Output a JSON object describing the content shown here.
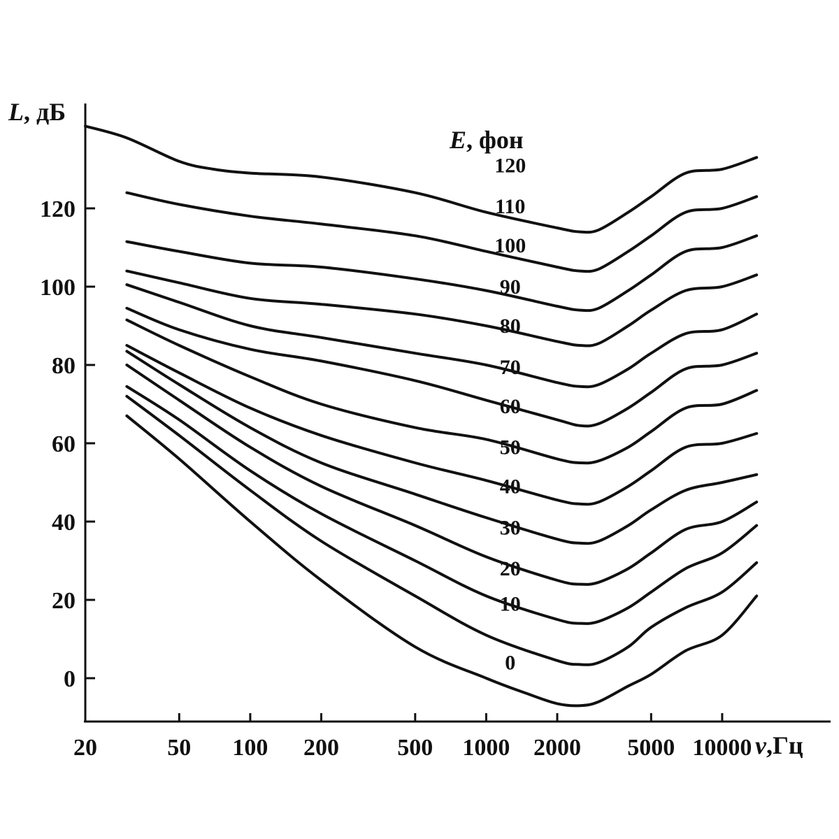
{
  "chart_data": {
    "type": "line",
    "title": "",
    "ylabel": {
      "symbol": "L",
      "unit": ", дБ"
    },
    "xlabel": {
      "symbol": "ν",
      "unit": ",Гц"
    },
    "legend_title": {
      "symbol": "E",
      "unit": ", фон"
    },
    "x_scale": "log",
    "xlim": [
      20,
      20000
    ],
    "ylim": [
      -12,
      146
    ],
    "grid": false,
    "x_ticks": [
      {
        "value": 20,
        "label": "20"
      },
      {
        "value": 50,
        "label": "50"
      },
      {
        "value": 100,
        "label": "100"
      },
      {
        "value": 200,
        "label": "200"
      },
      {
        "value": 500,
        "label": "500"
      },
      {
        "value": 1000,
        "label": "1000"
      },
      {
        "value": 2000,
        "label": "2000"
      },
      {
        "value": 5000,
        "label": "5000"
      },
      {
        "value": 10000,
        "label": "10000"
      }
    ],
    "y_ticks": [
      {
        "value": 0,
        "label": "0"
      },
      {
        "value": 20,
        "label": "20"
      },
      {
        "value": 40,
        "label": "40"
      },
      {
        "value": 60,
        "label": "60"
      },
      {
        "value": 80,
        "label": "80"
      },
      {
        "value": 100,
        "label": "100"
      },
      {
        "value": 120,
        "label": "120"
      }
    ],
    "series": [
      {
        "label": "120",
        "label_at": [
          1030,
          131
        ],
        "points": [
          [
            20,
            141
          ],
          [
            30,
            138
          ],
          [
            50,
            132
          ],
          [
            70,
            130
          ],
          [
            100,
            129
          ],
          [
            200,
            128
          ],
          [
            500,
            124
          ],
          [
            1000,
            119
          ],
          [
            2000,
            115
          ],
          [
            2500,
            114
          ],
          [
            3000,
            114.5
          ],
          [
            4000,
            119
          ],
          [
            5000,
            123
          ],
          [
            7000,
            129
          ],
          [
            10000,
            130
          ],
          [
            14000,
            133
          ]
        ]
      },
      {
        "label": "110",
        "label_at": [
          1030,
          120.5
        ],
        "points": [
          [
            30,
            124
          ],
          [
            50,
            121
          ],
          [
            100,
            118
          ],
          [
            200,
            116
          ],
          [
            500,
            113
          ],
          [
            1000,
            109
          ],
          [
            2000,
            105
          ],
          [
            2500,
            104
          ],
          [
            3000,
            104.5
          ],
          [
            4000,
            109
          ],
          [
            5000,
            113
          ],
          [
            7000,
            119
          ],
          [
            10000,
            120
          ],
          [
            14000,
            123
          ]
        ]
      },
      {
        "label": "100",
        "label_at": [
          1030,
          110.5
        ],
        "points": [
          [
            30,
            111.5
          ],
          [
            50,
            109
          ],
          [
            100,
            106
          ],
          [
            200,
            105
          ],
          [
            500,
            102
          ],
          [
            1000,
            99
          ],
          [
            2000,
            95
          ],
          [
            2500,
            94
          ],
          [
            3000,
            94.5
          ],
          [
            4000,
            99
          ],
          [
            5000,
            103
          ],
          [
            7000,
            109
          ],
          [
            10000,
            110
          ],
          [
            14000,
            113
          ]
        ]
      },
      {
        "label": "90",
        "label_at": [
          1030,
          100
        ],
        "points": [
          [
            30,
            104
          ],
          [
            50,
            101
          ],
          [
            100,
            97
          ],
          [
            200,
            95.5
          ],
          [
            500,
            93
          ],
          [
            1000,
            90
          ],
          [
            2000,
            86
          ],
          [
            2500,
            85
          ],
          [
            3000,
            85.5
          ],
          [
            4000,
            90
          ],
          [
            5000,
            94
          ],
          [
            7000,
            99
          ],
          [
            10000,
            100
          ],
          [
            14000,
            103
          ]
        ]
      },
      {
        "label": "80",
        "label_at": [
          1030,
          90
        ],
        "points": [
          [
            30,
            100.5
          ],
          [
            50,
            96
          ],
          [
            100,
            90
          ],
          [
            200,
            87
          ],
          [
            500,
            83
          ],
          [
            1000,
            80
          ],
          [
            2000,
            75.5
          ],
          [
            2500,
            74.5
          ],
          [
            3000,
            75
          ],
          [
            4000,
            79
          ],
          [
            5000,
            83
          ],
          [
            7000,
            88
          ],
          [
            10000,
            89
          ],
          [
            14000,
            93
          ]
        ]
      },
      {
        "label": "70",
        "label_at": [
          1030,
          79.5
        ],
        "points": [
          [
            30,
            94.5
          ],
          [
            50,
            89
          ],
          [
            100,
            84
          ],
          [
            200,
            81
          ],
          [
            500,
            76
          ],
          [
            1000,
            71
          ],
          [
            2000,
            66
          ],
          [
            2500,
            64.5
          ],
          [
            3000,
            65
          ],
          [
            4000,
            69
          ],
          [
            5000,
            73
          ],
          [
            7000,
            79
          ],
          [
            10000,
            80
          ],
          [
            14000,
            83
          ]
        ]
      },
      {
        "label": "60",
        "label_at": [
          1030,
          69.5
        ],
        "points": [
          [
            30,
            91.5
          ],
          [
            50,
            85
          ],
          [
            100,
            77
          ],
          [
            200,
            70
          ],
          [
            500,
            64
          ],
          [
            1000,
            61
          ],
          [
            2000,
            56
          ],
          [
            2500,
            55
          ],
          [
            3000,
            55.5
          ],
          [
            4000,
            59
          ],
          [
            5000,
            63
          ],
          [
            7000,
            69
          ],
          [
            10000,
            70
          ],
          [
            14000,
            73.5
          ]
        ]
      },
      {
        "label": "50",
        "label_at": [
          1030,
          59
        ],
        "points": [
          [
            30,
            85
          ],
          [
            50,
            78
          ],
          [
            100,
            69
          ],
          [
            200,
            62
          ],
          [
            500,
            55
          ],
          [
            1000,
            50.5
          ],
          [
            2000,
            45.5
          ],
          [
            2500,
            44.5
          ],
          [
            3000,
            45
          ],
          [
            4000,
            49
          ],
          [
            5000,
            53
          ],
          [
            7000,
            59
          ],
          [
            10000,
            60
          ],
          [
            14000,
            62.5
          ]
        ]
      },
      {
        "label": "40",
        "label_at": [
          1030,
          49
        ],
        "points": [
          [
            30,
            83.5
          ],
          [
            50,
            75
          ],
          [
            100,
            64
          ],
          [
            200,
            55
          ],
          [
            500,
            47
          ],
          [
            1000,
            41
          ],
          [
            2000,
            35.5
          ],
          [
            2500,
            34.5
          ],
          [
            3000,
            35
          ],
          [
            4000,
            39
          ],
          [
            5000,
            43
          ],
          [
            7000,
            48
          ],
          [
            10000,
            50
          ],
          [
            14000,
            52
          ]
        ]
      },
      {
        "label": "30",
        "label_at": [
          1030,
          38.5
        ],
        "points": [
          [
            30,
            80
          ],
          [
            50,
            71
          ],
          [
            100,
            59
          ],
          [
            200,
            49
          ],
          [
            500,
            39
          ],
          [
            1000,
            31
          ],
          [
            2000,
            25
          ],
          [
            2500,
            24
          ],
          [
            3000,
            24.5
          ],
          [
            4000,
            28
          ],
          [
            5000,
            32
          ],
          [
            7000,
            38
          ],
          [
            10000,
            40
          ],
          [
            14000,
            45
          ]
        ]
      },
      {
        "label": "20",
        "label_at": [
          1030,
          28
        ],
        "points": [
          [
            30,
            74.5
          ],
          [
            50,
            66
          ],
          [
            100,
            53
          ],
          [
            200,
            42
          ],
          [
            500,
            30
          ],
          [
            1000,
            21
          ],
          [
            2000,
            15
          ],
          [
            2500,
            14
          ],
          [
            3000,
            14.5
          ],
          [
            4000,
            18
          ],
          [
            5000,
            22
          ],
          [
            7000,
            28
          ],
          [
            10000,
            32
          ],
          [
            14000,
            39
          ]
        ]
      },
      {
        "label": "10",
        "label_at": [
          1030,
          19
        ],
        "points": [
          [
            30,
            72
          ],
          [
            50,
            62
          ],
          [
            100,
            48
          ],
          [
            200,
            35
          ],
          [
            500,
            21
          ],
          [
            1000,
            11
          ],
          [
            2000,
            4.5
          ],
          [
            2500,
            3.5
          ],
          [
            3000,
            4
          ],
          [
            4000,
            8
          ],
          [
            5000,
            13
          ],
          [
            7000,
            18
          ],
          [
            10000,
            22
          ],
          [
            14000,
            29.5
          ]
        ]
      },
      {
        "label": "0",
        "label_at": [
          1030,
          4
        ],
        "points": [
          [
            30,
            67
          ],
          [
            50,
            56
          ],
          [
            100,
            40
          ],
          [
            200,
            25
          ],
          [
            500,
            8
          ],
          [
            1000,
            0
          ],
          [
            1500,
            -4
          ],
          [
            2000,
            -6.5
          ],
          [
            2500,
            -7
          ],
          [
            3000,
            -6
          ],
          [
            4000,
            -2
          ],
          [
            5000,
            1
          ],
          [
            7000,
            7
          ],
          [
            10000,
            11
          ],
          [
            14000,
            21
          ]
        ]
      }
    ]
  }
}
